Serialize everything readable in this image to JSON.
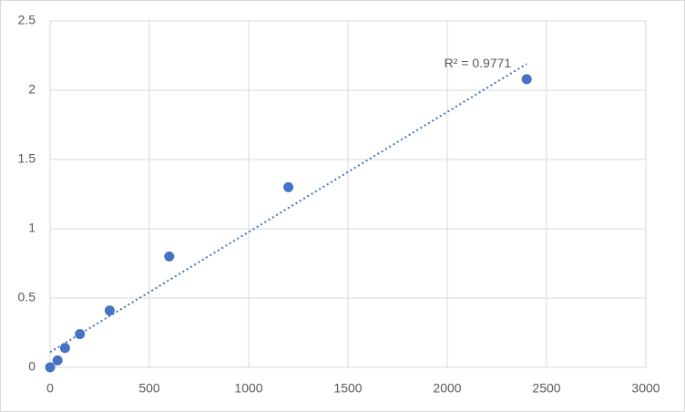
{
  "chart_data": {
    "type": "scatter",
    "x": [
      0,
      37.5,
      75,
      150,
      300,
      600,
      1200,
      2400
    ],
    "values": [
      0,
      0.05,
      0.14,
      0.24,
      0.41,
      0.8,
      1.3,
      2.08
    ],
    "color": "#4472c4",
    "trendline": {
      "x": [
        0,
        2400
      ],
      "values": [
        0.11,
        2.19
      ],
      "color": "#4472c4",
      "label": "R² = 0.9771"
    },
    "xlim": [
      0,
      3000
    ],
    "xticks": [
      0,
      500,
      1000,
      1500,
      2000,
      2500,
      3000
    ],
    "ylim": [
      0,
      2.5
    ],
    "yticks": [
      0,
      0.5,
      1,
      1.5,
      2,
      2.5
    ],
    "grid": true
  }
}
